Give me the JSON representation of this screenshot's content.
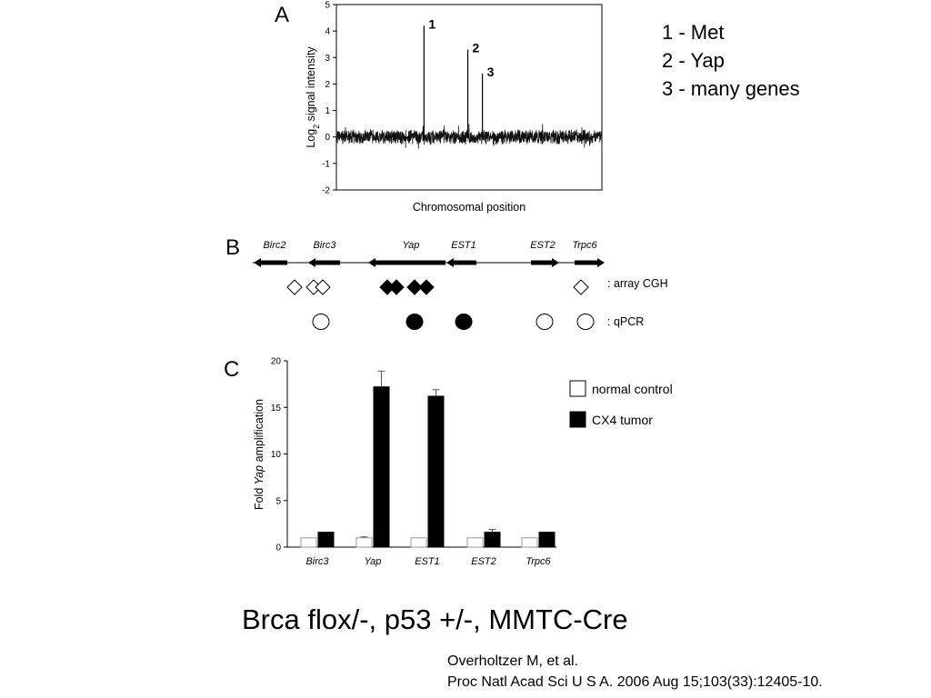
{
  "legend_key": [
    {
      "text": "1 - Met"
    },
    {
      "text": "2 - Yap"
    },
    {
      "text": "3 - many genes"
    }
  ],
  "main_title": "Brca flox/-, p53 +/-, MMTC-Cre",
  "citation": {
    "line1": "Overholtzer M, et al.",
    "line2": "Proc Natl Acad Sci U S A. 2006 Aug 15;103(33):12405-10."
  },
  "chart_data": [
    {
      "type": "line",
      "panel": "A",
      "xlabel": "Chromosomal position",
      "ylabel_main": "Log",
      "ylabel_sub": "2",
      "ylabel_rest": " signal intensity",
      "ylim": [
        -2,
        5
      ],
      "yticks": [
        -2,
        -1,
        0,
        1,
        2,
        3,
        4,
        5
      ],
      "noise_baseline": 0,
      "peaks": [
        {
          "label": "1",
          "position": 0.33,
          "value": 4.2
        },
        {
          "label": "2",
          "position": 0.495,
          "value": 3.3
        },
        {
          "label": "3",
          "position": 0.55,
          "value": 2.4
        }
      ]
    },
    {
      "type": "diagram",
      "panel": "B",
      "genes": [
        {
          "name": "Birc2",
          "direction": "left"
        },
        {
          "name": "Birc3",
          "direction": "left"
        },
        {
          "name": "Yap",
          "direction": "left"
        },
        {
          "name": "EST1",
          "direction": "left"
        },
        {
          "name": "EST2",
          "direction": "right"
        },
        {
          "name": "Trpc6",
          "direction": "right"
        }
      ],
      "cgh_label": ": array CGH",
      "qpcr_label": ": qPCR",
      "cgh_markers": [
        {
          "filled": false
        },
        {
          "filled": false
        },
        {
          "filled": false
        },
        {
          "filled": true
        },
        {
          "filled": true
        },
        {
          "filled": true
        },
        {
          "filled": true
        },
        {
          "filled": false
        }
      ],
      "qpcr_markers": [
        {
          "filled": false
        },
        {
          "filled": true
        },
        {
          "filled": true
        },
        {
          "filled": false
        },
        {
          "filled": false
        }
      ]
    },
    {
      "type": "bar",
      "panel": "C",
      "categories": [
        "Birc3",
        "Yap",
        "EST1",
        "EST2",
        "Trpc6"
      ],
      "ylabel_pre": "Fold ",
      "ylabel_italic": "Yap",
      "ylabel_post": " amplification",
      "ylim": [
        0,
        20
      ],
      "yticks": [
        0,
        5,
        10,
        15,
        20
      ],
      "series": [
        {
          "name": "normal control",
          "color": "#ffffff",
          "values": [
            1,
            1,
            1,
            1,
            1
          ],
          "errors": [
            0,
            0.1,
            0,
            0,
            0
          ]
        },
        {
          "name": "CX4 tumor",
          "color": "#000000",
          "values": [
            1.6,
            17.2,
            16.2,
            1.6,
            1.6
          ],
          "errors": [
            0,
            1.7,
            0.7,
            0.3,
            0
          ]
        }
      ],
      "legend_position": "top-right"
    }
  ]
}
